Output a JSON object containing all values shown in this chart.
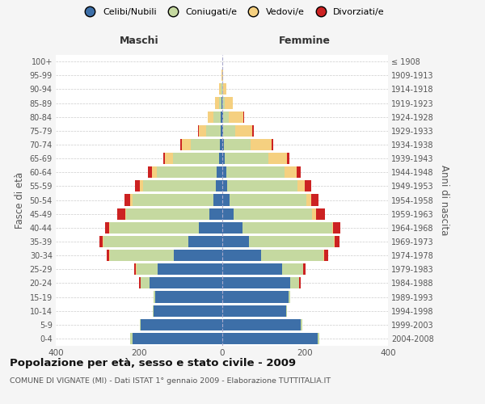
{
  "age_groups": [
    "0-4",
    "5-9",
    "10-14",
    "15-19",
    "20-24",
    "25-29",
    "30-34",
    "35-39",
    "40-44",
    "45-49",
    "50-54",
    "55-59",
    "60-64",
    "65-69",
    "70-74",
    "75-79",
    "80-84",
    "85-89",
    "90-94",
    "95-99",
    "100+"
  ],
  "birth_years": [
    "2004-2008",
    "1999-2003",
    "1994-1998",
    "1989-1993",
    "1984-1988",
    "1979-1983",
    "1974-1978",
    "1969-1973",
    "1964-1968",
    "1959-1963",
    "1954-1958",
    "1949-1953",
    "1944-1948",
    "1939-1943",
    "1934-1938",
    "1929-1933",
    "1924-1928",
    "1919-1923",
    "1914-1918",
    "1909-1913",
    "≤ 1908"
  ],
  "colors": {
    "celibi": "#3d6fa8",
    "coniugati": "#c5d9a0",
    "vedovi": "#f5d080",
    "divorziati": "#cc2222"
  },
  "maschi": {
    "celibi": [
      215,
      195,
      165,
      160,
      175,
      155,
      115,
      80,
      55,
      30,
      20,
      15,
      12,
      7,
      5,
      3,
      2,
      1,
      0,
      0,
      0
    ],
    "coniugati": [
      5,
      3,
      2,
      5,
      20,
      50,
      155,
      205,
      215,
      200,
      195,
      175,
      145,
      110,
      70,
      35,
      18,
      5,
      2,
      0,
      0
    ],
    "vedovi": [
      0,
      0,
      0,
      0,
      1,
      2,
      2,
      2,
      2,
      3,
      5,
      8,
      12,
      20,
      22,
      18,
      15,
      10,
      5,
      1,
      0
    ],
    "divorziati": [
      0,
      0,
      0,
      0,
      3,
      5,
      5,
      8,
      10,
      20,
      15,
      12,
      10,
      5,
      3,
      1,
      0,
      0,
      0,
      0,
      0
    ]
  },
  "femmine": {
    "celibi": [
      230,
      190,
      155,
      160,
      165,
      145,
      95,
      65,
      50,
      28,
      18,
      12,
      10,
      7,
      4,
      3,
      2,
      1,
      0,
      0,
      0
    ],
    "coniugati": [
      4,
      3,
      2,
      5,
      20,
      50,
      150,
      205,
      215,
      190,
      185,
      170,
      140,
      105,
      65,
      30,
      15,
      5,
      2,
      0,
      0
    ],
    "vedovi": [
      0,
      0,
      0,
      0,
      1,
      1,
      2,
      2,
      3,
      8,
      12,
      18,
      30,
      45,
      50,
      40,
      35,
      20,
      8,
      2,
      0
    ],
    "divorziati": [
      0,
      0,
      0,
      0,
      3,
      5,
      8,
      12,
      18,
      22,
      18,
      15,
      10,
      5,
      5,
      3,
      2,
      1,
      0,
      0,
      0
    ]
  },
  "title": "Popolazione per età, sesso e stato civile - 2009",
  "subtitle": "COMUNE DI VIGNATE (MI) - Dati ISTAT 1° gennaio 2009 - Elaborazione TUTTITALIA.IT",
  "xlabel_left": "Maschi",
  "xlabel_right": "Femmine",
  "ylabel_left": "Fasce di età",
  "ylabel_right": "Anni di nascita",
  "xlim": 400,
  "xticks": [
    -400,
    -200,
    0,
    200,
    400
  ],
  "legend_labels": [
    "Celibi/Nubili",
    "Coniugati/e",
    "Vedovi/e",
    "Divorziati/e"
  ],
  "background_color": "#f5f5f5",
  "plot_bg_color": "#ffffff"
}
